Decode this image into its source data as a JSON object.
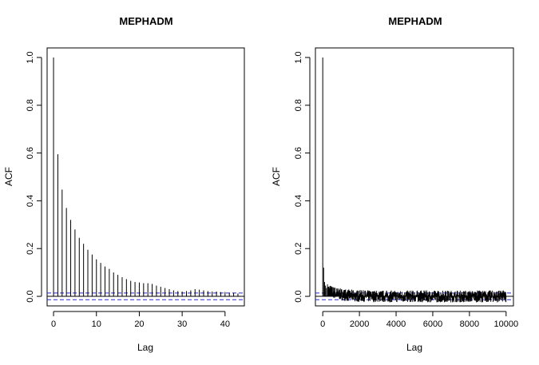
{
  "chart_data": [
    {
      "type": "bar",
      "title": "MEPHADM",
      "xlabel": "Lag",
      "ylabel": "ACF",
      "xlim": [
        -1.5,
        44.5
      ],
      "ylim": [
        -0.04,
        1.04
      ],
      "x_ticks": [
        0,
        10,
        20,
        30,
        40
      ],
      "y_ticks": [
        0.0,
        0.2,
        0.4,
        0.6,
        0.8,
        1.0
      ],
      "x_tick_labels": [
        "0",
        "10",
        "20",
        "30",
        "40"
      ],
      "y_tick_labels": [
        "0.0",
        "0.2",
        "0.4",
        "0.6",
        "0.8",
        "1.0"
      ],
      "confidence_bounds": [
        0.014,
        -0.014
      ],
      "x": [
        0,
        1,
        2,
        3,
        4,
        5,
        6,
        7,
        8,
        9,
        10,
        11,
        12,
        13,
        14,
        15,
        16,
        17,
        18,
        19,
        20,
        21,
        22,
        23,
        24,
        25,
        26,
        27,
        28,
        29,
        30,
        31,
        32,
        33,
        34,
        35,
        36,
        37,
        38,
        39,
        40,
        41,
        42,
        43
      ],
      "values": [
        1.0,
        0.595,
        0.447,
        0.37,
        0.32,
        0.28,
        0.245,
        0.22,
        0.195,
        0.175,
        0.155,
        0.14,
        0.125,
        0.115,
        0.1,
        0.09,
        0.08,
        0.072,
        0.065,
        0.06,
        0.058,
        0.055,
        0.055,
        0.052,
        0.045,
        0.04,
        0.035,
        0.03,
        0.025,
        0.022,
        0.02,
        0.022,
        0.025,
        0.03,
        0.028,
        0.025,
        0.022,
        0.02,
        0.02,
        0.018,
        0.018,
        0.015,
        0.015,
        0.012
      ]
    },
    {
      "type": "bar",
      "title": "MEPHADM",
      "xlabel": "Lag",
      "ylabel": "ACF",
      "xlim": [
        -400,
        10400
      ],
      "ylim": [
        -0.04,
        1.04
      ],
      "x_ticks": [
        0,
        2000,
        4000,
        6000,
        8000,
        10000
      ],
      "y_ticks": [
        0.0,
        0.2,
        0.4,
        0.6,
        0.8,
        1.0
      ],
      "x_tick_labels": [
        "0",
        "2000",
        "4000",
        "6000",
        "8000",
        "10000"
      ],
      "y_tick_labels": [
        "0.0",
        "0.2",
        "0.4",
        "0.6",
        "0.8",
        "1.0"
      ],
      "confidence_bounds": [
        0.014,
        -0.014
      ],
      "lag_range": [
        0,
        10000
      ],
      "initial_lags": [
        [
          0,
          1.0
        ],
        [
          50,
          0.12
        ],
        [
          100,
          0.06
        ],
        [
          150,
          0.045
        ],
        [
          200,
          0.035
        ]
      ],
      "noise_amplitude": 0.025
    }
  ]
}
